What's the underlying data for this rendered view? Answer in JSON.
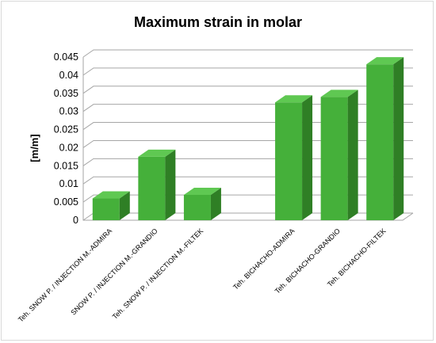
{
  "chart_data": {
    "type": "bar",
    "title": "Maximum strain in molar",
    "xlabel": "",
    "ylabel": "[m/m]",
    "ylim": [
      0,
      0.045
    ],
    "yticks": [
      "0",
      "0.005",
      "0.01",
      "0.015",
      "0.02",
      "0.025",
      "0.03",
      "0.035",
      "0.04",
      "0.045"
    ],
    "categories": [
      "Teh. SNOW P. / INJECTION M.-ADMIRA",
      "SNOW P. / INJECTION M.-GRANDIO",
      "Teh. SNOW P. / INJECTION M.-FILTEK",
      "",
      "Teh. BICHACHO-ADMIRA",
      "Teh. BICHACHO-GRANDIO",
      "Teh. BICHACHO-FILTEK"
    ],
    "values": [
      0.006,
      0.0175,
      0.007,
      null,
      0.0325,
      0.034,
      0.043
    ],
    "grid": true,
    "style": "3d-column",
    "colors": {
      "front": "#45b03a",
      "top": "#5fc852",
      "side": "#2f7f25",
      "grid": "#a6a6a6"
    }
  }
}
